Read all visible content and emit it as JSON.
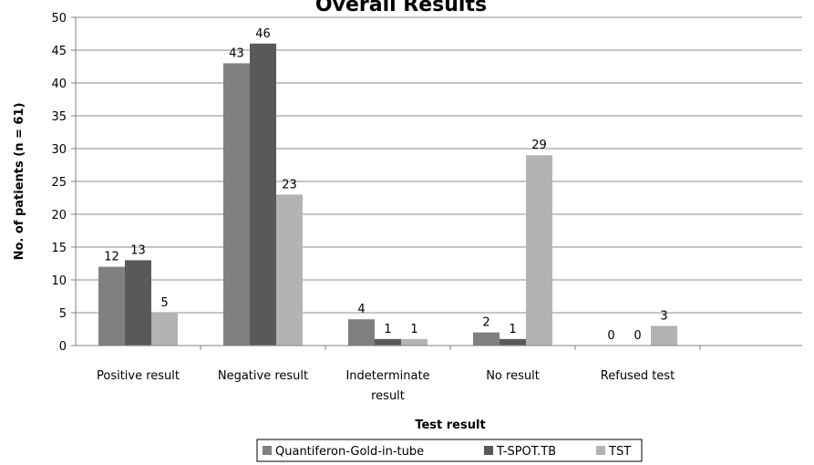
{
  "chart_data": {
    "type": "bar",
    "title": "Overall Results",
    "xlabel": "Test result",
    "ylabel": "No. of patients (n = 61)",
    "ylim": [
      0,
      50
    ],
    "yticks": [
      0,
      5,
      10,
      15,
      20,
      25,
      30,
      35,
      40,
      45,
      50
    ],
    "grid": true,
    "legend_position": "bottom",
    "categories": [
      [
        "Positive result"
      ],
      [
        "Negative result"
      ],
      [
        "Indeterminate",
        "result"
      ],
      [
        "No result"
      ],
      [
        "Refused test"
      ]
    ],
    "series": [
      {
        "name": "Quantiferon-Gold-in-tube",
        "color": "#808080",
        "values": [
          12,
          43,
          4,
          2,
          0
        ]
      },
      {
        "name": "T-SPOT.TB",
        "color": "#595959",
        "values": [
          13,
          46,
          1,
          1,
          0
        ]
      },
      {
        "name": "TST",
        "color": "#b3b3b3",
        "values": [
          5,
          23,
          1,
          29,
          3
        ]
      }
    ]
  }
}
